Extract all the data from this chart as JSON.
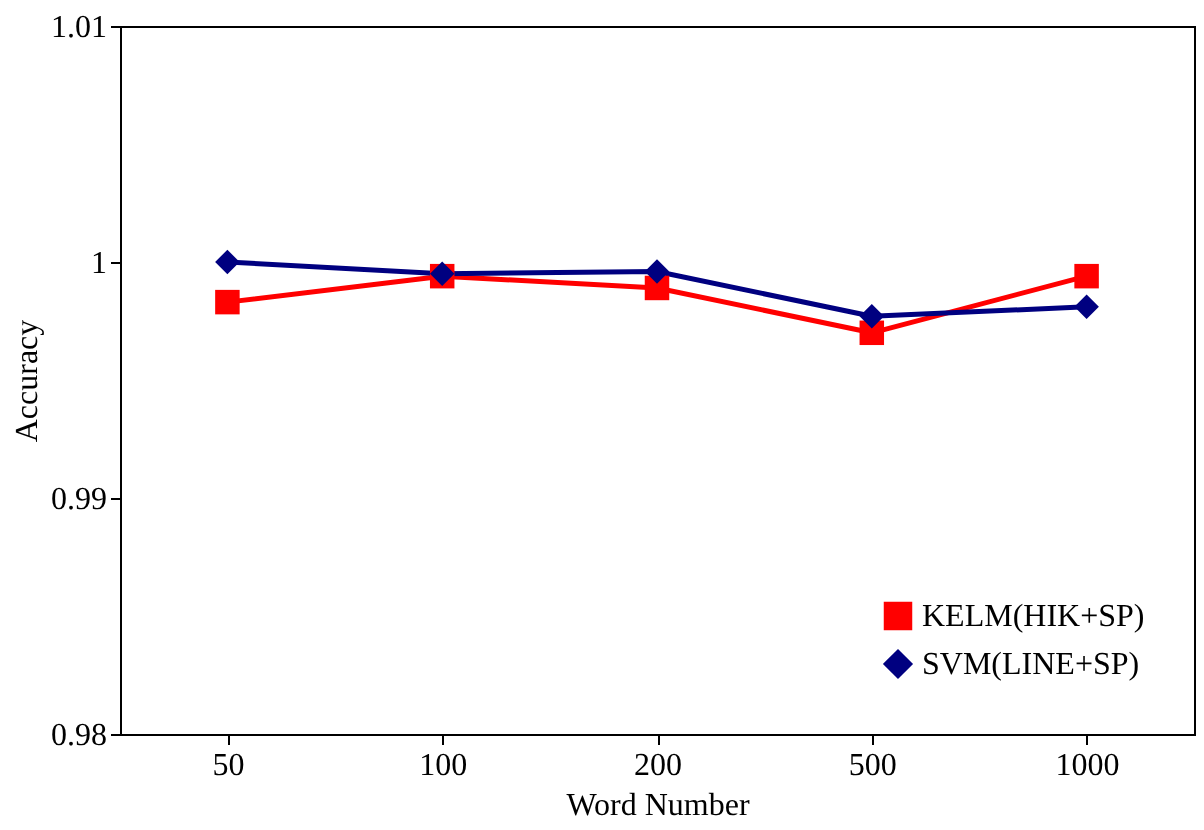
{
  "chart_data": {
    "type": "line",
    "xlabel": "Word Number",
    "ylabel": "Accuracy",
    "categories": [
      "50",
      "100",
      "200",
      "500",
      "1000"
    ],
    "series": [
      {
        "name": "KELM(HIK+SP)",
        "color": "#ff0000",
        "marker": "square",
        "values": [
          0.9983,
          0.9994,
          0.9989,
          0.997,
          0.9994
        ]
      },
      {
        "name": "SVM(LINE+SP)",
        "color": "#000080",
        "marker": "diamond",
        "values": [
          1.0,
          0.9995,
          0.9996,
          0.9977,
          0.9981
        ]
      }
    ],
    "ylim": [
      0.98,
      1.01
    ],
    "yticks": [
      0.98,
      0.99,
      1,
      1.01
    ],
    "legend": "bottom right",
    "grid": false
  }
}
